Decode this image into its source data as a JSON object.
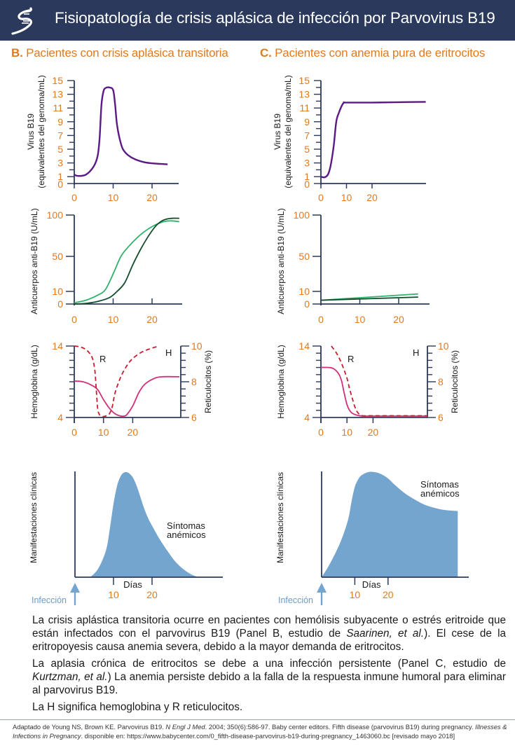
{
  "header": {
    "title": "Fisiopatología de crisis aplásica de infección por Parvovirus B19",
    "logo_icon": "dna-helix-logo-icon",
    "background": "#2b3a5c"
  },
  "colors": {
    "accent_orange": "#e07a1f",
    "axis_navy": "#2b3a5c",
    "virus_purple": "#5b1a86",
    "antibody_light_green": "#2fb36a",
    "antibody_dark_green": "#0f4d2a",
    "hemoglobin_magenta": "#d0307a",
    "reticulocyte_red": "#c81e2c",
    "symptoms_blue": "#74a5cf"
  },
  "panels": {
    "B": {
      "letter": "B.",
      "title": "Pacientes con crisis aplásica transitoria"
    },
    "C": {
      "letter": "C.",
      "title": "Pacientes con anemia pura de eritrocitos"
    }
  },
  "axis_titles": {
    "virus_line1": "Virus B19",
    "virus_line2": "(equivalentes del genoma/mL)",
    "antibody": "Anticuerpos anti-B19 (U/mL)",
    "hemoglobin": "Hemoglobina (g/dL)",
    "reticulocytes": "Reticulocitos (%)",
    "clinical": "Manifestaciones clínicas",
    "days": "Días",
    "infection": "Infección"
  },
  "annotations": {
    "R": "R",
    "H": "H",
    "symptoms_line1": "Síntomas",
    "symptoms_line2": "anémicos"
  },
  "chart_data": [
    {
      "id": "B-virus",
      "type": "line",
      "panel": "B",
      "ylabel": "Virus B19 (equivalentes del genoma/mL)",
      "xlabel": "",
      "xticks": [
        0,
        10,
        20
      ],
      "yticks": [
        0,
        1,
        3,
        5,
        7,
        9,
        11,
        13,
        15
      ],
      "ylim": [
        0,
        15
      ],
      "series": [
        {
          "name": "Virus B19",
          "color": "#5b1a86",
          "x": [
            0,
            1,
            3,
            5,
            6,
            6.5,
            7,
            7.5,
            8,
            9,
            10,
            10.5,
            11,
            12,
            13,
            15,
            18,
            21,
            24
          ],
          "y": [
            1.3,
            1.1,
            1.3,
            2.5,
            4.0,
            6.5,
            11.5,
            13.4,
            13.9,
            14.0,
            13.6,
            11.5,
            8.5,
            5.8,
            4.6,
            3.7,
            3.1,
            2.9,
            2.8
          ]
        }
      ]
    },
    {
      "id": "C-virus",
      "type": "line",
      "panel": "C",
      "ylabel": "Virus B19 (equivalentes del genoma/mL)",
      "xticks": [
        0,
        10,
        20
      ],
      "yticks": [
        0,
        1,
        3,
        5,
        7,
        9,
        11,
        13,
        15
      ],
      "ylim": [
        0,
        15
      ],
      "series": [
        {
          "name": "Virus B19",
          "color": "#5b1a86",
          "x": [
            0,
            1,
            2,
            3,
            4,
            5,
            6,
            7,
            8,
            9,
            10,
            20,
            30,
            41
          ],
          "y": [
            1.0,
            0.9,
            1.0,
            1.5,
            3.0,
            5.5,
            9.0,
            10.3,
            11.2,
            11.8,
            11.8,
            11.8,
            11.85,
            11.9
          ]
        }
      ]
    },
    {
      "id": "B-antibody",
      "type": "line",
      "panel": "B",
      "ylabel": "Anticuerpos anti-B19 (U/mL)",
      "xticks": [
        0,
        10,
        20
      ],
      "yticks": [
        0,
        10,
        50,
        100
      ],
      "ylim": [
        0,
        100
      ],
      "series": [
        {
          "name": "Anticuerpos (curva clara)",
          "color": "#2fb36a",
          "x": [
            0,
            3,
            6,
            8,
            10,
            12,
            14,
            17,
            20,
            23,
            25,
            27
          ],
          "y": [
            1,
            3,
            7,
            12,
            30,
            50,
            62,
            76,
            86,
            92,
            93,
            92
          ]
        },
        {
          "name": "Anticuerpos (curva oscura)",
          "color": "#0f4d2a",
          "x": [
            0,
            3,
            6,
            9,
            11,
            13,
            15,
            17,
            19,
            21,
            23,
            25,
            27
          ],
          "y": [
            0,
            0.5,
            2,
            5,
            10,
            20,
            40,
            58,
            74,
            87,
            94,
            96,
            96
          ]
        }
      ]
    },
    {
      "id": "C-antibody",
      "type": "line",
      "panel": "C",
      "ylabel": "Anticuerpos anti-B19 (U/mL)",
      "xticks": [
        0,
        10,
        20
      ],
      "yticks": [
        0,
        10,
        50,
        100
      ],
      "ylim": [
        0,
        100
      ],
      "series": [
        {
          "name": "Anticuerpos (curva clara)",
          "color": "#2fb36a",
          "x": [
            0,
            25
          ],
          "y": [
            3,
            8
          ]
        },
        {
          "name": "Anticuerpos (curva oscura)",
          "color": "#0f4d2a",
          "x": [
            0,
            25
          ],
          "y": [
            3,
            5.5
          ]
        }
      ]
    },
    {
      "id": "B-hemoglobin",
      "type": "line",
      "panel": "B",
      "ylabel": "Hemoglobina (g/dL)",
      "y2label": "Reticulocitos (%)",
      "xticks": [
        0,
        10,
        20
      ],
      "yticks": [
        4,
        14
      ],
      "y2ticks": [
        6,
        8,
        10
      ],
      "ylim": [
        4,
        14
      ],
      "y2lim": [
        6,
        10
      ],
      "series": [
        {
          "name": "H (hemoglobina)",
          "axis": "left",
          "color": "#d0307a",
          "style": "solid",
          "x": [
            0,
            3,
            6,
            8,
            10,
            12,
            14,
            16,
            17,
            18,
            20,
            22,
            24,
            27,
            30,
            36
          ],
          "y": [
            9.1,
            9.0,
            8.5,
            7.9,
            6.5,
            5.3,
            4.5,
            4.2,
            4.2,
            4.4,
            5.6,
            7.4,
            8.6,
            9.4,
            9.7,
            9.7
          ]
        },
        {
          "name": "R (reticulocitos)",
          "axis": "right",
          "color": "#c81e2c",
          "style": "dashed",
          "x": [
            0,
            2,
            4,
            6,
            7,
            7.5,
            8,
            8.5,
            9,
            10,
            11,
            12,
            13,
            14,
            16,
            18,
            20,
            23,
            26,
            29
          ],
          "y": [
            10,
            9.95,
            9.8,
            9.4,
            8.7,
            7.6,
            6.5,
            6.2,
            6.1,
            6.05,
            6.1,
            6.2,
            6.6,
            7.4,
            8.3,
            8.9,
            9.3,
            9.65,
            9.85,
            10
          ]
        }
      ]
    },
    {
      "id": "C-hemoglobin",
      "type": "line",
      "panel": "C",
      "ylabel": "Hemoglobina (g/dL)",
      "y2label": "Reticulocitos (%)",
      "xticks": [
        0,
        10,
        20
      ],
      "yticks": [
        4,
        14
      ],
      "y2ticks": [
        6,
        8,
        10
      ],
      "ylim": [
        4,
        14
      ],
      "y2lim": [
        6,
        10
      ],
      "series": [
        {
          "name": "H (hemoglobina)",
          "axis": "left",
          "color": "#d0307a",
          "style": "solid",
          "x": [
            0,
            3,
            5,
            7,
            8,
            9,
            10,
            11,
            12,
            14,
            16,
            20,
            30,
            41
          ],
          "y": [
            11.0,
            11.0,
            10.8,
            10.0,
            9.0,
            7.3,
            5.8,
            5.0,
            4.6,
            4.3,
            4.2,
            4.2,
            4.2,
            4.2
          ]
        },
        {
          "name": "R (reticulocitos)",
          "axis": "right",
          "color": "#c81e2c",
          "style": "dashed",
          "x": [
            4,
            6,
            8,
            10,
            11,
            12,
            13,
            14,
            15,
            16,
            20,
            30,
            41
          ],
          "y": [
            10,
            9.6,
            9.0,
            8.2,
            7.6,
            7.1,
            6.6,
            6.3,
            6.15,
            6.1,
            6.1,
            6.1,
            6.1
          ]
        }
      ]
    },
    {
      "id": "B-clinical",
      "type": "area",
      "panel": "B",
      "ylabel": "Manifestaciones clínicas",
      "xlabel": "Días",
      "xticks": [
        10,
        20
      ],
      "annotation": "Síntomas anémicos",
      "arrow_label": "Infección",
      "series": [
        {
          "name": "Síntomas anémicos",
          "color": "#74a5cf",
          "x": [
            4,
            6,
            8,
            9,
            10,
            11,
            12,
            13,
            14,
            15,
            16,
            17,
            18,
            19,
            20,
            22,
            24,
            26,
            28,
            30,
            32
          ],
          "y": [
            0,
            0.08,
            0.25,
            0.45,
            0.7,
            0.88,
            0.97,
            1.0,
            0.99,
            0.95,
            0.87,
            0.76,
            0.65,
            0.56,
            0.49,
            0.36,
            0.25,
            0.15,
            0.08,
            0.03,
            0
          ]
        }
      ]
    },
    {
      "id": "C-clinical",
      "type": "area",
      "panel": "C",
      "ylabel": "Manifestaciones clínicas",
      "xlabel": "Días",
      "xticks": [
        10,
        20
      ],
      "annotation": "Síntomas anémicos",
      "arrow_label": "Infección",
      "series": [
        {
          "name": "Síntomas anémicos",
          "color": "#74a5cf",
          "x": [
            0,
            2,
            4,
            6,
            8,
            9,
            10,
            11,
            12,
            14,
            16,
            18,
            20,
            22,
            25,
            28,
            31,
            34,
            37,
            41
          ],
          "y": [
            0,
            0.1,
            0.22,
            0.36,
            0.55,
            0.72,
            0.86,
            0.93,
            0.97,
            1.0,
            1.0,
            0.98,
            0.94,
            0.88,
            0.8,
            0.74,
            0.69,
            0.66,
            0.64,
            0.63
          ]
        }
      ]
    }
  ],
  "body": {
    "p1_part1": "La crisis aplástica transitoria ocurre en pacientes con hemólisis subyacente o estrés eritroide que están infectados con el parvovirus B19 (Panel B, estudio de ",
    "p1_italic": "Saarinen, et al.",
    "p1_part2": "). El cese de la eritropoyesis causa anemia severa, debido a la mayor demanda de eritrocitos.",
    "p2_part1": "La aplasia crónica de eritrocitos se debe a una infección persistente (Panel C, estudio de ",
    "p2_italic": "Kurtzman, et al.",
    "p2_part2": ") La anemia persiste debido a la falla de la respuesta inmune humoral para eliminar al parvovirus B19.",
    "p3": "La H significa hemoglobina y R reticulocitos."
  },
  "footnote": {
    "part1": "Adaptado de Young NS, Brown KE. Parvovirus B19. ",
    "italic1": "N Engl J Med",
    "part2": ". 2004; 350(6):586-97. Baby center editors. Fifth disease (parvovirus B19) during pregnancy. ",
    "italic2": "Illnesses & Infections in Pregnancy",
    "part3": ". disponible en: https://www.babycenter.com/0_fifth-disease-parvovirus-b19-during-pregnancy_1463060.bc [revisado mayo 2018]"
  }
}
